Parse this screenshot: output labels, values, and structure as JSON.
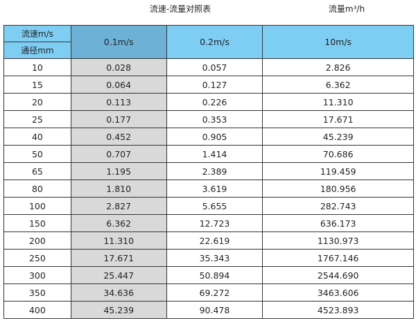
{
  "title": "流速-流量对照表",
  "unit_label": "流量m³/h",
  "colors": {
    "header": "#7ecef4",
    "highlight_header": "#6db2d6",
    "highlight_column": "#d9d9d9"
  },
  "header": {
    "velocity_label": "流速m/s",
    "diameter_label": "通径mm",
    "columns": [
      "0.1m/s",
      "0.2m/s",
      "10m/s"
    ]
  },
  "rows": [
    [
      "10",
      "0.028",
      "0.057",
      "2.826"
    ],
    [
      "15",
      "0.064",
      "0.127",
      "6.362"
    ],
    [
      "20",
      "0.113",
      "0.226",
      "11.310"
    ],
    [
      "25",
      "0.177",
      "0.353",
      "17.671"
    ],
    [
      "40",
      "0.452",
      "0.905",
      "45.239"
    ],
    [
      "50",
      "0.707",
      "1.414",
      "70.686"
    ],
    [
      "65",
      "1.195",
      "2.389",
      "119.459"
    ],
    [
      "80",
      "1.810",
      "3.619",
      "180.956"
    ],
    [
      "100",
      "2.827",
      "5.655",
      "282.743"
    ],
    [
      "150",
      "6.362",
      "12.723",
      "636.173"
    ],
    [
      "200",
      "11.310",
      "22.619",
      "1130.973"
    ],
    [
      "250",
      "17.671",
      "35.343",
      "1767.146"
    ],
    [
      "300",
      "25.447",
      "50.894",
      "2544.690"
    ],
    [
      "350",
      "34.636",
      "69.272",
      "3463.606"
    ],
    [
      "400",
      "45.239",
      "90.478",
      "4523.893"
    ]
  ]
}
